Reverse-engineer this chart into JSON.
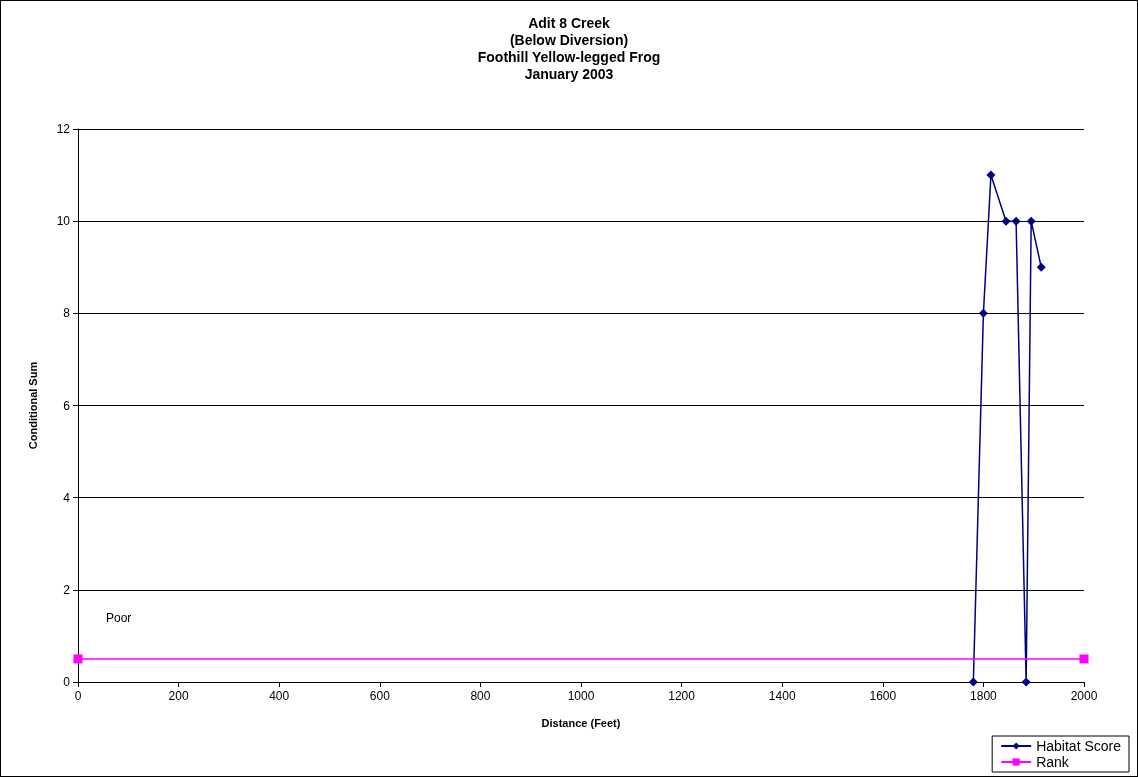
{
  "chart_data": {
    "type": "line",
    "title": "Adit 8 Creek\n(Below Diversion)\nFoothill Yellow-legged Frog\nJanuary 2003",
    "xlabel": "Distance (Feet)",
    "ylabel": "Conditional Sum",
    "series": [
      {
        "name": "Habitat Score",
        "color": "#000080",
        "marker": "diamond",
        "x": [
          1780,
          1800,
          1815,
          1845,
          1865,
          1885,
          1895,
          1915
        ],
        "values": [
          0,
          8,
          11,
          10,
          10,
          0,
          10,
          9
        ]
      },
      {
        "name": "Rank",
        "color": "#ff00ff",
        "marker": "square",
        "x": [
          0,
          2000
        ],
        "values": [
          0.5,
          0.5
        ]
      }
    ],
    "annotations": [
      "Poor"
    ],
    "xlim": [
      0,
      2000
    ],
    "xticks": [
      0,
      200,
      400,
      600,
      800,
      1000,
      1200,
      1400,
      1600,
      1800,
      2000
    ],
    "ylim": [
      0,
      12
    ],
    "yticks": [
      0,
      2,
      4,
      6,
      8,
      10,
      12
    ],
    "grid": "y",
    "legend": "bottom right"
  }
}
